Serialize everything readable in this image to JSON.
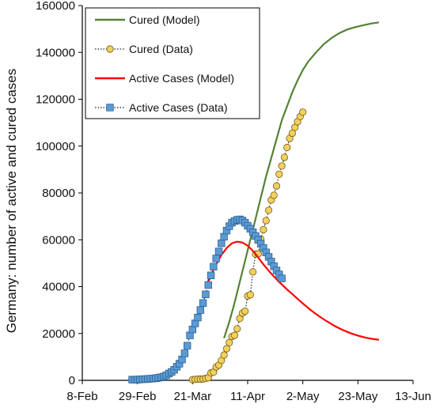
{
  "chart_data": {
    "type": "line",
    "title": "",
    "xlabel": "",
    "ylabel": "Germany: number of active and cured cases",
    "x_ticks": [
      "8-Feb",
      "29-Feb",
      "21-Mar",
      "11-Apr",
      "2-May",
      "23-May",
      "13-Jun"
    ],
    "x_tick_dates": [
      "2020-02-08",
      "2020-02-29",
      "2020-03-21",
      "2020-04-11",
      "2020-05-02",
      "2020-05-23",
      "2020-06-13"
    ],
    "xlim": [
      "2020-02-08",
      "2020-06-13"
    ],
    "y_ticks": [
      "0",
      "20000",
      "40000",
      "60000",
      "80000",
      "100000",
      "120000",
      "140000",
      "160000"
    ],
    "ylim": [
      0,
      160000
    ],
    "grid": false,
    "legend_position": "top-left",
    "series": [
      {
        "name": "Cured (Model)",
        "style": "line",
        "color": "#548235",
        "points": [
          [
            "2020-04-02",
            18000
          ],
          [
            "2020-04-04",
            25000
          ],
          [
            "2020-04-06",
            33000
          ],
          [
            "2020-04-08",
            42000
          ],
          [
            "2020-04-10",
            51000
          ],
          [
            "2020-04-12",
            60000
          ],
          [
            "2020-04-14",
            69000
          ],
          [
            "2020-04-16",
            78000
          ],
          [
            "2020-04-18",
            87000
          ],
          [
            "2020-04-20",
            95000
          ],
          [
            "2020-04-22",
            103000
          ],
          [
            "2020-04-24",
            111000
          ],
          [
            "2020-04-26",
            117000
          ],
          [
            "2020-04-28",
            123000
          ],
          [
            "2020-04-30",
            128000
          ],
          [
            "2020-05-02",
            132500
          ],
          [
            "2020-05-04",
            136000
          ],
          [
            "2020-05-07",
            140000
          ],
          [
            "2020-05-10",
            143500
          ],
          [
            "2020-05-13",
            146200
          ],
          [
            "2020-05-16",
            148300
          ],
          [
            "2020-05-19",
            149800
          ],
          [
            "2020-05-22",
            150800
          ],
          [
            "2020-05-25",
            151600
          ],
          [
            "2020-05-28",
            152300
          ],
          [
            "2020-05-31",
            152800
          ]
        ]
      },
      {
        "name": "Cured (Data)",
        "style": "markers-dotted",
        "color": "#f5d05a",
        "points": [
          [
            "2020-03-21",
            300
          ],
          [
            "2020-03-22",
            400
          ],
          [
            "2020-03-23",
            500
          ],
          [
            "2020-03-24",
            500
          ],
          [
            "2020-03-25",
            600
          ],
          [
            "2020-03-26",
            800
          ],
          [
            "2020-03-27",
            1100
          ],
          [
            "2020-03-28",
            3200
          ],
          [
            "2020-03-29",
            3500
          ],
          [
            "2020-03-30",
            5700
          ],
          [
            "2020-03-31",
            6500
          ],
          [
            "2020-04-01",
            8500
          ],
          [
            "2020-04-02",
            10800
          ],
          [
            "2020-04-03",
            13500
          ],
          [
            "2020-04-04",
            16100
          ],
          [
            "2020-04-05",
            18700
          ],
          [
            "2020-04-06",
            19200
          ],
          [
            "2020-04-07",
            22000
          ],
          [
            "2020-04-08",
            26400
          ],
          [
            "2020-04-09",
            28700
          ],
          [
            "2020-04-10",
            29500
          ],
          [
            "2020-04-11",
            36000
          ],
          [
            "2020-04-12",
            36500
          ],
          [
            "2020-04-13",
            46300
          ],
          [
            "2020-04-14",
            53900
          ],
          [
            "2020-04-15",
            54000
          ],
          [
            "2020-04-16",
            60300
          ],
          [
            "2020-04-17",
            64300
          ],
          [
            "2020-04-18",
            68200
          ],
          [
            "2020-04-19",
            72600
          ],
          [
            "2020-04-20",
            77000
          ],
          [
            "2020-04-21",
            79000
          ],
          [
            "2020-04-22",
            83000
          ],
          [
            "2020-04-23",
            88000
          ],
          [
            "2020-04-24",
            91500
          ],
          [
            "2020-04-25",
            95200
          ],
          [
            "2020-04-26",
            99400
          ],
          [
            "2020-04-27",
            103300
          ],
          [
            "2020-04-28",
            105500
          ],
          [
            "2020-04-29",
            108000
          ],
          [
            "2020-04-30",
            110400
          ],
          [
            "2020-05-01",
            112600
          ],
          [
            "2020-05-02",
            114500
          ]
        ]
      },
      {
        "name": "Active Cases (Model)",
        "style": "line",
        "color": "#ff0000",
        "points": [
          [
            "2020-03-26",
            40000
          ],
          [
            "2020-03-28",
            45000
          ],
          [
            "2020-03-30",
            49500
          ],
          [
            "2020-04-01",
            53500
          ],
          [
            "2020-04-03",
            56500
          ],
          [
            "2020-04-05",
            58500
          ],
          [
            "2020-04-07",
            59200
          ],
          [
            "2020-04-09",
            58800
          ],
          [
            "2020-04-11",
            57500
          ],
          [
            "2020-04-13",
            55300
          ],
          [
            "2020-04-15",
            52500
          ],
          [
            "2020-04-17",
            49500
          ],
          [
            "2020-04-20",
            45500
          ],
          [
            "2020-04-23",
            42000
          ],
          [
            "2020-04-26",
            38800
          ],
          [
            "2020-04-29",
            35800
          ],
          [
            "2020-05-02",
            32800
          ],
          [
            "2020-05-05",
            30000
          ],
          [
            "2020-05-08",
            27500
          ],
          [
            "2020-05-11",
            25300
          ],
          [
            "2020-05-14",
            23300
          ],
          [
            "2020-05-17",
            21600
          ],
          [
            "2020-05-20",
            20200
          ],
          [
            "2020-05-23",
            19100
          ],
          [
            "2020-05-26",
            18200
          ],
          [
            "2020-05-29",
            17600
          ],
          [
            "2020-05-31",
            17300
          ]
        ]
      },
      {
        "name": "Active Cases (Data)",
        "style": "markers-dotted",
        "color": "#5b9bd5",
        "points": [
          [
            "2020-02-27",
            300
          ],
          [
            "2020-02-28",
            300
          ],
          [
            "2020-02-29",
            300
          ],
          [
            "2020-03-01",
            400
          ],
          [
            "2020-03-02",
            500
          ],
          [
            "2020-03-03",
            500
          ],
          [
            "2020-03-04",
            600
          ],
          [
            "2020-03-05",
            700
          ],
          [
            "2020-03-06",
            800
          ],
          [
            "2020-03-07",
            900
          ],
          [
            "2020-03-08",
            1100
          ],
          [
            "2020-03-09",
            1300
          ],
          [
            "2020-03-10",
            1600
          ],
          [
            "2020-03-11",
            2100
          ],
          [
            "2020-03-12",
            2900
          ],
          [
            "2020-03-13",
            3600
          ],
          [
            "2020-03-14",
            4500
          ],
          [
            "2020-03-15",
            5800
          ],
          [
            "2020-03-16",
            7100
          ],
          [
            "2020-03-17",
            8900
          ],
          [
            "2020-03-18",
            11500
          ],
          [
            "2020-03-19",
            14800
          ],
          [
            "2020-03-20",
            19200
          ],
          [
            "2020-03-21",
            21700
          ],
          [
            "2020-03-22",
            24300
          ],
          [
            "2020-03-23",
            26800
          ],
          [
            "2020-03-24",
            30000
          ],
          [
            "2020-03-25",
            33000
          ],
          [
            "2020-03-26",
            36700
          ],
          [
            "2020-03-27",
            40700
          ],
          [
            "2020-03-28",
            44800
          ],
          [
            "2020-03-29",
            48500
          ],
          [
            "2020-03-30",
            52000
          ],
          [
            "2020-03-31",
            55000
          ],
          [
            "2020-04-01",
            58500
          ],
          [
            "2020-04-02",
            61300
          ],
          [
            "2020-04-03",
            63900
          ],
          [
            "2020-04-04",
            65800
          ],
          [
            "2020-04-05",
            67300
          ],
          [
            "2020-04-06",
            68000
          ],
          [
            "2020-04-07",
            68500
          ],
          [
            "2020-04-08",
            68700
          ],
          [
            "2020-04-09",
            68200
          ],
          [
            "2020-04-10",
            67300
          ],
          [
            "2020-04-11",
            66000
          ],
          [
            "2020-04-12",
            64700
          ],
          [
            "2020-04-13",
            63200
          ],
          [
            "2020-04-14",
            61600
          ],
          [
            "2020-04-15",
            60000
          ],
          [
            "2020-04-16",
            58300
          ],
          [
            "2020-04-17",
            56500
          ],
          [
            "2020-04-18",
            54600
          ],
          [
            "2020-04-19",
            52700
          ],
          [
            "2020-04-20",
            50700
          ],
          [
            "2020-04-21",
            48700
          ],
          [
            "2020-04-22",
            46900
          ],
          [
            "2020-04-23",
            45200
          ],
          [
            "2020-04-24",
            43500
          ]
        ]
      }
    ]
  }
}
